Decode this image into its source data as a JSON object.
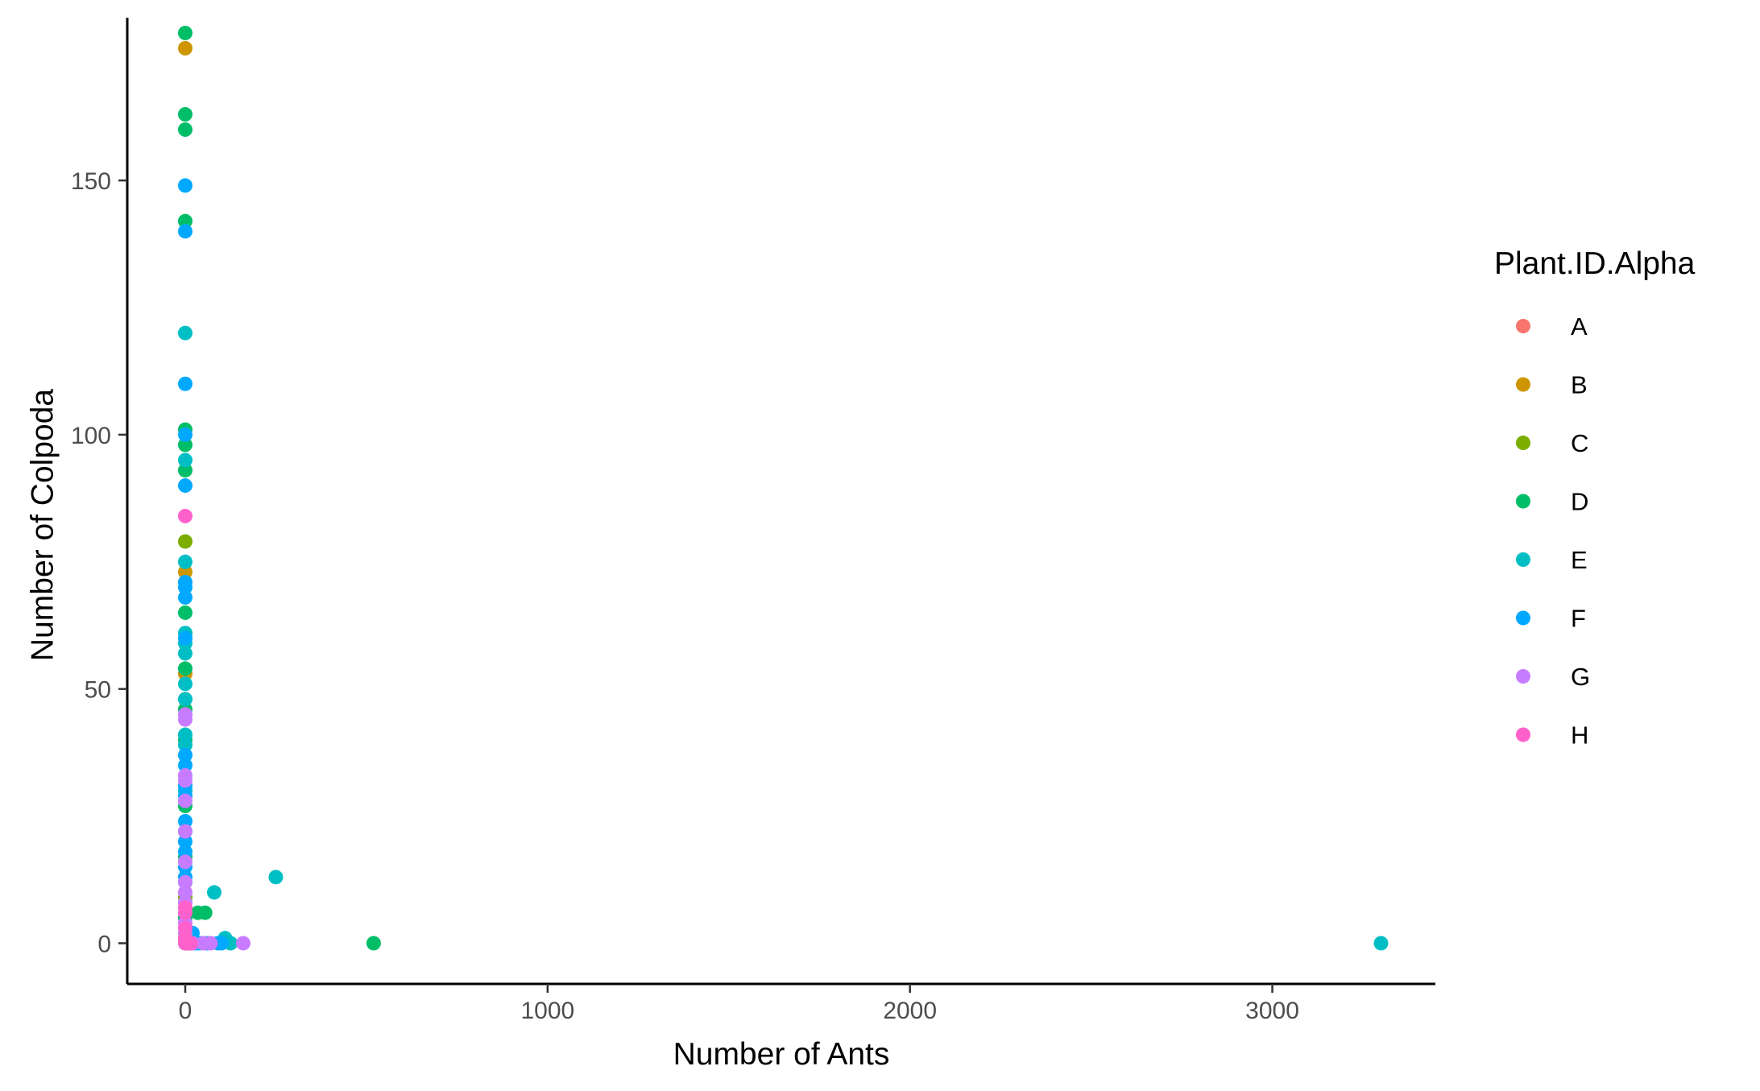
{
  "chart_data": {
    "type": "scatter",
    "title": "",
    "xlabel": "Number of Ants",
    "ylabel": "Number of Colpoda",
    "xlim": [
      -160,
      3450
    ],
    "ylim": [
      -8,
      182
    ],
    "x_ticks": [
      0,
      1000,
      2000,
      3000
    ],
    "y_ticks": [
      0,
      50,
      100,
      150
    ],
    "grid": false,
    "legend": {
      "title": "Plant.ID.Alpha",
      "position": "right",
      "entries": [
        {
          "label": "A",
          "color": "#F8766D"
        },
        {
          "label": "B",
          "color": "#CD9600"
        },
        {
          "label": "C",
          "color": "#7CAE00"
        },
        {
          "label": "D",
          "color": "#00BE67"
        },
        {
          "label": "E",
          "color": "#00BFC4"
        },
        {
          "label": "F",
          "color": "#00A9FF"
        },
        {
          "label": "G",
          "color": "#C77CFF"
        },
        {
          "label": "H",
          "color": "#FF61CC"
        }
      ]
    },
    "series": [
      {
        "name": "A",
        "color": "#F8766D",
        "points": [
          [
            0,
            0
          ],
          [
            0,
            1
          ],
          [
            2,
            0
          ],
          [
            1,
            3
          ],
          [
            0,
            5
          ]
        ]
      },
      {
        "name": "B",
        "color": "#CD9600",
        "points": [
          [
            0,
            176
          ],
          [
            0,
            73
          ],
          [
            0,
            53
          ],
          [
            0,
            2
          ],
          [
            3,
            0
          ]
        ]
      },
      {
        "name": "C",
        "color": "#7CAE00",
        "points": [
          [
            0,
            79
          ],
          [
            0,
            0
          ],
          [
            1,
            1
          ],
          [
            0,
            9
          ]
        ]
      },
      {
        "name": "D",
        "color": "#00BE67",
        "points": [
          [
            0,
            179
          ],
          [
            0,
            163
          ],
          [
            0,
            160
          ],
          [
            0,
            142
          ],
          [
            0,
            101
          ],
          [
            0,
            98
          ],
          [
            0,
            93
          ],
          [
            0,
            65
          ],
          [
            0,
            54
          ],
          [
            0,
            46
          ],
          [
            0,
            40
          ],
          [
            0,
            27
          ],
          [
            0,
            17
          ],
          [
            0,
            5
          ],
          [
            35,
            6
          ],
          [
            55,
            6
          ],
          [
            520,
            0
          ],
          [
            5,
            0
          ],
          [
            10,
            0
          ],
          [
            20,
            0
          ]
        ]
      },
      {
        "name": "E",
        "color": "#00BFC4",
        "points": [
          [
            0,
            120
          ],
          [
            0,
            95
          ],
          [
            0,
            75
          ],
          [
            0,
            61
          ],
          [
            0,
            59
          ],
          [
            0,
            57
          ],
          [
            0,
            51
          ],
          [
            0,
            48
          ],
          [
            0,
            41
          ],
          [
            0,
            39
          ],
          [
            0,
            30
          ],
          [
            0,
            22
          ],
          [
            0,
            12
          ],
          [
            80,
            10
          ],
          [
            250,
            13
          ],
          [
            110,
            1
          ],
          [
            125,
            0
          ],
          [
            3300,
            0
          ],
          [
            0,
            0
          ],
          [
            40,
            0
          ]
        ]
      },
      {
        "name": "F",
        "color": "#00A9FF",
        "points": [
          [
            0,
            149
          ],
          [
            0,
            140
          ],
          [
            0,
            110
          ],
          [
            0,
            100
          ],
          [
            0,
            90
          ],
          [
            0,
            71
          ],
          [
            0,
            70
          ],
          [
            0,
            68
          ],
          [
            0,
            60
          ],
          [
            0,
            37
          ],
          [
            0,
            35
          ],
          [
            0,
            31
          ],
          [
            0,
            29
          ],
          [
            0,
            24
          ],
          [
            0,
            20
          ],
          [
            0,
            18
          ],
          [
            0,
            15
          ],
          [
            0,
            13
          ],
          [
            20,
            2
          ],
          [
            30,
            0
          ],
          [
            60,
            0
          ],
          [
            90,
            0
          ],
          [
            100,
            0
          ]
        ]
      },
      {
        "name": "G",
        "color": "#C77CFF",
        "points": [
          [
            0,
            45
          ],
          [
            0,
            44
          ],
          [
            0,
            33
          ],
          [
            0,
            32
          ],
          [
            0,
            28
          ],
          [
            0,
            22
          ],
          [
            0,
            16
          ],
          [
            0,
            12
          ],
          [
            0,
            10
          ],
          [
            0,
            8
          ],
          [
            0,
            4
          ],
          [
            0,
            2
          ],
          [
            20,
            0
          ],
          [
            50,
            0
          ],
          [
            70,
            0
          ],
          [
            160,
            0
          ]
        ]
      },
      {
        "name": "H",
        "color": "#FF61CC",
        "points": [
          [
            0,
            84
          ],
          [
            0,
            7
          ],
          [
            0,
            6
          ],
          [
            0,
            3
          ],
          [
            0,
            1
          ],
          [
            0,
            0
          ],
          [
            5,
            0
          ],
          [
            15,
            0
          ]
        ]
      }
    ]
  }
}
